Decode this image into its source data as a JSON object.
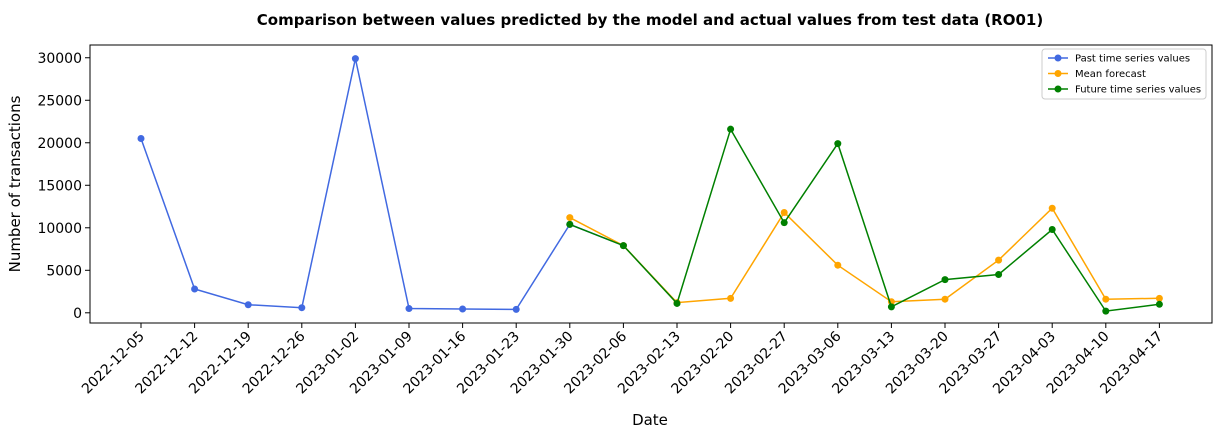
{
  "chart_data": {
    "type": "line",
    "title": "Comparison between values predicted by the model and actual values from test data (RO01)",
    "xlabel": "Date",
    "ylabel": "Number of transactions",
    "categories": [
      "2022-12-05",
      "2022-12-12",
      "2022-12-19",
      "2022-12-26",
      "2023-01-02",
      "2023-01-09",
      "2023-01-16",
      "2023-01-23",
      "2023-01-30",
      "2023-02-06",
      "2023-02-13",
      "2023-02-20",
      "2023-02-27",
      "2023-03-06",
      "2023-03-13",
      "2023-03-20",
      "2023-03-27",
      "2023-04-03",
      "2023-04-10",
      "2023-04-17"
    ],
    "yticks": [
      0,
      5000,
      10000,
      15000,
      20000,
      25000,
      30000
    ],
    "ylim": [
      -1200,
      31500
    ],
    "grid": false,
    "legend_position": "top-right",
    "series": [
      {
        "name": "Past time series values",
        "color": "#4169e1",
        "x": [
          "2022-12-05",
          "2022-12-12",
          "2022-12-19",
          "2022-12-26",
          "2023-01-02",
          "2023-01-09",
          "2023-01-16",
          "2023-01-23",
          "2023-01-30",
          "2023-02-06"
        ],
        "values": [
          20500,
          2800,
          950,
          600,
          29900,
          500,
          450,
          400,
          10400,
          7900
        ]
      },
      {
        "name": "Mean forecast",
        "color": "#ffa500",
        "x": [
          "2023-01-30",
          "2023-02-06",
          "2023-02-13",
          "2023-02-20",
          "2023-02-27",
          "2023-03-06",
          "2023-03-13",
          "2023-03-20",
          "2023-03-27",
          "2023-04-03",
          "2023-04-10",
          "2023-04-17"
        ],
        "values": [
          11200,
          7900,
          1200,
          1700,
          11800,
          5600,
          1300,
          1600,
          6200,
          12300,
          1600,
          1700
        ]
      },
      {
        "name": "Future time series values",
        "color": "#008000",
        "x": [
          "2023-01-30",
          "2023-02-06",
          "2023-02-13",
          "2023-02-20",
          "2023-02-27",
          "2023-03-06",
          "2023-03-13",
          "2023-03-20",
          "2023-03-27",
          "2023-04-03",
          "2023-04-10",
          "2023-04-17"
        ],
        "values": [
          10400,
          7900,
          1100,
          21600,
          10600,
          19900,
          700,
          3900,
          4500,
          9800,
          200,
          1000
        ]
      }
    ]
  }
}
